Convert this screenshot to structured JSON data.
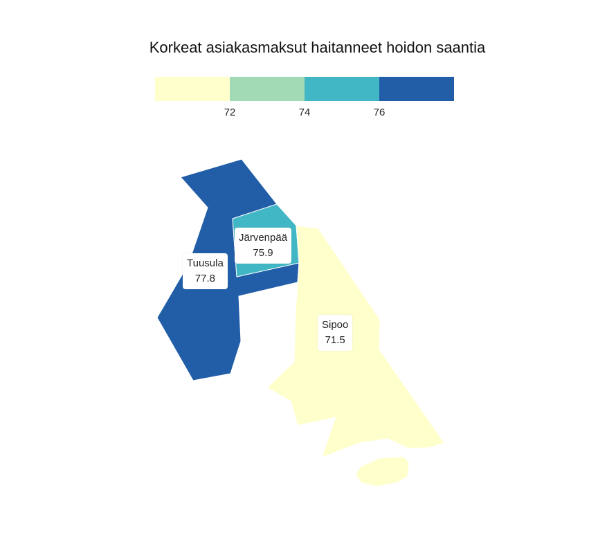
{
  "title": "Korkeat asiakasmaksut haitanneet hoidon saantia",
  "legend": {
    "colors": [
      "#ffffcc",
      "#a1dab4",
      "#41b6c4",
      "#225ea8"
    ],
    "ticks": [
      "72",
      "74",
      "76"
    ]
  },
  "regions": [
    {
      "name": "Tuusula",
      "value": "77.8",
      "color": "#225ea8"
    },
    {
      "name": "Järvenpää",
      "value": "75.9",
      "color": "#41b6c4"
    },
    {
      "name": "Sipoo",
      "value": "71.5",
      "color": "#ffffcc"
    }
  ]
}
